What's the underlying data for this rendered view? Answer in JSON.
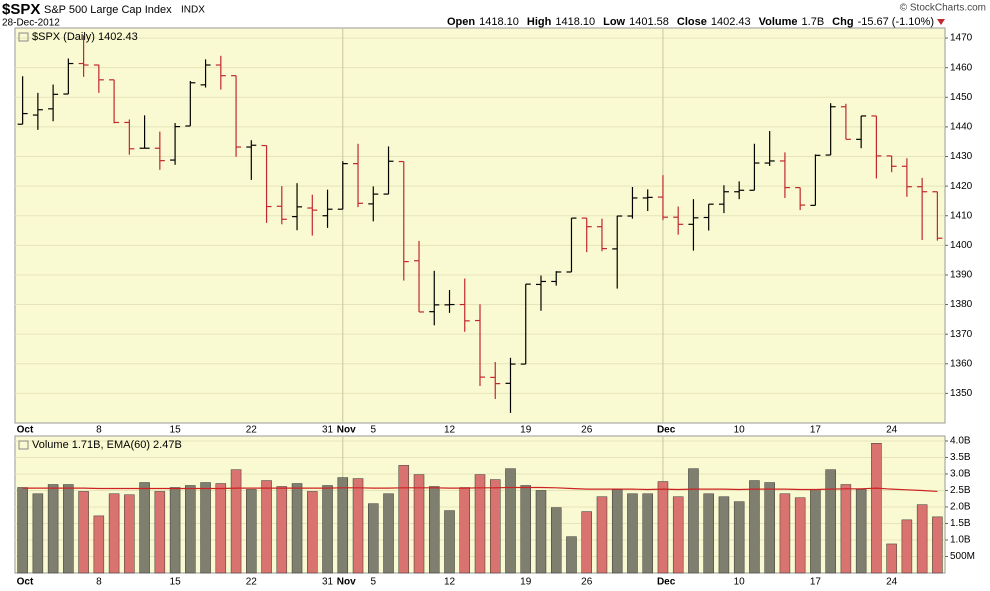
{
  "header": {
    "symbol": "$SPX",
    "name": "S&P 500 Large Cap Index",
    "exchange": "INDX",
    "date": "28-Dec-2012",
    "credit": "© StockCharts.com",
    "stats": [
      {
        "label": "Open",
        "value": "1418.10"
      },
      {
        "label": "High",
        "value": "1418.10"
      },
      {
        "label": "Low",
        "value": "1401.58"
      },
      {
        "label": "Close",
        "value": "1402.43"
      },
      {
        "label": "Volume",
        "value": "1.7B"
      },
      {
        "label": "Chg",
        "value": "-15.67 (-1.10%)"
      }
    ]
  },
  "chart_data": [
    {
      "type": "ohlc",
      "legend": "$SPX (Daily) 1402.43",
      "background": "#fafad2",
      "up_color": "#000000",
      "down_color": "#c0282d",
      "categories": [
        "Oct",
        null,
        null,
        null,
        null,
        "8",
        null,
        null,
        null,
        null,
        "15",
        null,
        null,
        null,
        null,
        "22",
        null,
        null,
        null,
        null,
        "31",
        "Nov",
        null,
        "5",
        null,
        null,
        null,
        null,
        "12",
        null,
        null,
        null,
        null,
        "19",
        null,
        null,
        null,
        "26",
        null,
        null,
        null,
        null,
        "Dec",
        null,
        null,
        null,
        null,
        "10",
        null,
        null,
        null,
        null,
        "17",
        null,
        null,
        null,
        null,
        "24",
        null,
        null,
        null
      ],
      "open": [
        1440.9,
        1444.0,
        1446.1,
        1451.1,
        1461.4,
        1460.9,
        1455.9,
        1441.5,
        1432.8,
        1432.8,
        1428.8,
        1440.3,
        1454.2,
        1460.9,
        1457.3,
        1433.2,
        1433.7,
        1413.2,
        1409.7,
        1412.6,
        1410.0,
        1412.2,
        1427.6,
        1414.0,
        1417.3,
        1428.3,
        1394.8,
        1377.6,
        1379.9,
        1380.0,
        1374.6,
        1355.4,
        1353.4,
        1359.9,
        1386.8,
        1387.8,
        1391.0,
        1409.2,
        1406.3,
        1398.8,
        1409.9,
        1416.0,
        1416.3,
        1409.5,
        1407.1,
        1409.4,
        1413.9,
        1418.1,
        1418.6,
        1427.8,
        1428.5,
        1419.5,
        1413.5,
        1430.5,
        1446.8,
        1435.8,
        1443.7,
        1430.2,
        1426.7,
        1419.8,
        1418.1
      ],
      "high": [
        1457.1,
        1451.5,
        1454.3,
        1463.1,
        1470.9,
        1461.0,
        1455.9,
        1442.5,
        1443.9,
        1438.4,
        1441.3,
        1455.5,
        1462.8,
        1464.0,
        1457.3,
        1435.5,
        1433.7,
        1420.0,
        1421.0,
        1417.1,
        1418.8,
        1428.4,
        1434.3,
        1419.9,
        1433.4,
        1428.3,
        1401.5,
        1391.4,
        1384.9,
        1388.8,
        1380.1,
        1360.6,
        1362.0,
        1386.9,
        1389.8,
        1391.3,
        1409.2,
        1409.2,
        1409.0,
        1410.0,
        1419.7,
        1418.9,
        1423.7,
        1413.1,
        1415.6,
        1413.9,
        1420.3,
        1421.6,
        1434.3,
        1438.6,
        1431.4,
        1419.5,
        1430.7,
        1448.0,
        1447.8,
        1443.7,
        1443.7,
        1430.2,
        1429.4,
        1422.8,
        1418.1
      ],
      "low": [
        1440.9,
        1439.0,
        1441.9,
        1451.1,
        1456.9,
        1451.5,
        1441.2,
        1430.6,
        1432.8,
        1425.5,
        1427.2,
        1440.3,
        1453.3,
        1452.6,
        1429.9,
        1422.1,
        1407.6,
        1407.1,
        1405.1,
        1403.3,
        1405.9,
        1412.2,
        1412.9,
        1408.1,
        1417.3,
        1388.1,
        1377.5,
        1373.0,
        1377.2,
        1370.8,
        1352.5,
        1348.1,
        1343.4,
        1359.9,
        1377.9,
        1386.4,
        1391.0,
        1397.7,
        1398.0,
        1385.4,
        1409.0,
        1411.6,
        1408.5,
        1403.6,
        1398.2,
        1405.0,
        1410.9,
        1415.6,
        1418.6,
        1426.8,
        1416.0,
        1411.9,
        1413.5,
        1430.5,
        1435.8,
        1432.8,
        1422.6,
        1424.7,
        1416.4,
        1401.8,
        1401.6
      ],
      "close": [
        1444.5,
        1445.8,
        1451.0,
        1461.4,
        1460.9,
        1455.9,
        1441.5,
        1432.6,
        1432.8,
        1428.6,
        1440.1,
        1454.9,
        1460.9,
        1457.3,
        1433.2,
        1433.8,
        1413.1,
        1408.8,
        1413.0,
        1411.9,
        1412.2,
        1427.6,
        1414.2,
        1417.3,
        1428.4,
        1394.5,
        1377.5,
        1379.9,
        1380.0,
        1374.5,
        1355.5,
        1353.3,
        1359.9,
        1386.9,
        1387.8,
        1391.0,
        1409.2,
        1406.3,
        1398.9,
        1409.9,
        1416.0,
        1416.2,
        1409.5,
        1407.1,
        1409.3,
        1413.9,
        1418.1,
        1418.6,
        1427.8,
        1428.5,
        1419.5,
        1413.6,
        1430.4,
        1446.8,
        1435.8,
        1443.7,
        1430.2,
        1426.7,
        1419.8,
        1418.1,
        1402.4
      ],
      "ylim": [
        1340,
        1473.4
      ],
      "yticks": [
        1350,
        1360,
        1370,
        1380,
        1390,
        1400,
        1410,
        1420,
        1430,
        1440,
        1450,
        1460,
        1470
      ],
      "grid": true
    },
    {
      "type": "bar",
      "legend": "Volume 1.71B, EMA(60) 2.47B",
      "background": "#fafad2",
      "up_color": "#7f7f6f",
      "down_color": "#d9736f",
      "ema_color": "#cc2222",
      "categories": [
        "Oct",
        null,
        null,
        null,
        null,
        "8",
        null,
        null,
        null,
        null,
        "15",
        null,
        null,
        null,
        null,
        "22",
        null,
        null,
        null,
        null,
        "31",
        "Nov",
        null,
        "5",
        null,
        null,
        null,
        null,
        "12",
        null,
        null,
        null,
        null,
        "19",
        null,
        null,
        null,
        "26",
        null,
        null,
        null,
        null,
        "Dec",
        null,
        null,
        null,
        null,
        "10",
        null,
        null,
        null,
        null,
        "17",
        null,
        null,
        null,
        null,
        "24",
        null,
        null,
        null
      ],
      "values": [
        2.59,
        2.4,
        2.68,
        2.68,
        2.47,
        1.73,
        2.4,
        2.37,
        2.74,
        2.47,
        2.59,
        2.65,
        2.74,
        2.71,
        3.13,
        2.53,
        2.8,
        2.62,
        2.71,
        2.47,
        2.65,
        2.89,
        2.86,
        2.1,
        2.4,
        3.26,
        2.98,
        2.62,
        1.89,
        2.59,
        2.98,
        2.83,
        3.16,
        2.65,
        2.5,
        1.98,
        1.1,
        1.86,
        2.31,
        2.53,
        2.4,
        2.4,
        2.77,
        2.31,
        3.16,
        2.4,
        2.31,
        2.16,
        2.8,
        2.74,
        2.4,
        2.28,
        2.53,
        3.13,
        2.68,
        2.53,
        3.93,
        0.88,
        1.61,
        2.07,
        1.7
      ],
      "ema": [
        2.57,
        2.57,
        2.57,
        2.57,
        2.57,
        2.56,
        2.56,
        2.56,
        2.56,
        2.56,
        2.56,
        2.56,
        2.56,
        2.56,
        2.57,
        2.57,
        2.57,
        2.57,
        2.57,
        2.57,
        2.57,
        2.58,
        2.58,
        2.57,
        2.57,
        2.58,
        2.58,
        2.58,
        2.57,
        2.57,
        2.58,
        2.58,
        2.59,
        2.59,
        2.59,
        2.58,
        2.56,
        2.54,
        2.54,
        2.54,
        2.54,
        2.53,
        2.54,
        2.53,
        2.54,
        2.54,
        2.54,
        2.53,
        2.54,
        2.54,
        2.54,
        2.53,
        2.53,
        2.54,
        2.55,
        2.55,
        2.57,
        2.54,
        2.52,
        2.5,
        2.47
      ],
      "ylim": [
        0,
        4.15
      ],
      "yticks": [
        {
          "value": 0.5,
          "label": "500M"
        },
        {
          "value": 1.0,
          "label": "1.0B"
        },
        {
          "value": 1.5,
          "label": "1.5B"
        },
        {
          "value": 2.0,
          "label": "2.0B"
        },
        {
          "value": 2.5,
          "label": "2.5B"
        },
        {
          "value": 3.0,
          "label": "3.0B"
        },
        {
          "value": 3.5,
          "label": "3.5B"
        },
        {
          "value": 4.0,
          "label": "4.0B"
        }
      ],
      "grid": true
    }
  ]
}
